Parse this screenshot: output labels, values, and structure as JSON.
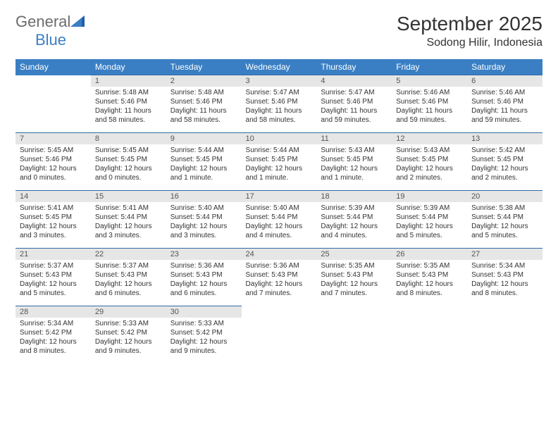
{
  "brand": {
    "main": "General",
    "sub": "Blue"
  },
  "title": "September 2025",
  "location": "Sodong Hilir, Indonesia",
  "colors": {
    "header_bg": "#3a7fc4",
    "header_text": "#ffffff",
    "row_border": "#2f6aa8",
    "daynum_bg": "#e6e6e6",
    "text": "#333333",
    "logo_gray": "#6b6b6b",
    "logo_blue": "#3a7fc4"
  },
  "weekdays": [
    "Sunday",
    "Monday",
    "Tuesday",
    "Wednesday",
    "Thursday",
    "Friday",
    "Saturday"
  ],
  "weeks": [
    [
      null,
      {
        "n": "1",
        "sr": "Sunrise: 5:48 AM",
        "ss": "Sunset: 5:46 PM",
        "dl": "Daylight: 11 hours and 58 minutes."
      },
      {
        "n": "2",
        "sr": "Sunrise: 5:48 AM",
        "ss": "Sunset: 5:46 PM",
        "dl": "Daylight: 11 hours and 58 minutes."
      },
      {
        "n": "3",
        "sr": "Sunrise: 5:47 AM",
        "ss": "Sunset: 5:46 PM",
        "dl": "Daylight: 11 hours and 58 minutes."
      },
      {
        "n": "4",
        "sr": "Sunrise: 5:47 AM",
        "ss": "Sunset: 5:46 PM",
        "dl": "Daylight: 11 hours and 59 minutes."
      },
      {
        "n": "5",
        "sr": "Sunrise: 5:46 AM",
        "ss": "Sunset: 5:46 PM",
        "dl": "Daylight: 11 hours and 59 minutes."
      },
      {
        "n": "6",
        "sr": "Sunrise: 5:46 AM",
        "ss": "Sunset: 5:46 PM",
        "dl": "Daylight: 11 hours and 59 minutes."
      }
    ],
    [
      {
        "n": "7",
        "sr": "Sunrise: 5:45 AM",
        "ss": "Sunset: 5:46 PM",
        "dl": "Daylight: 12 hours and 0 minutes."
      },
      {
        "n": "8",
        "sr": "Sunrise: 5:45 AM",
        "ss": "Sunset: 5:45 PM",
        "dl": "Daylight: 12 hours and 0 minutes."
      },
      {
        "n": "9",
        "sr": "Sunrise: 5:44 AM",
        "ss": "Sunset: 5:45 PM",
        "dl": "Daylight: 12 hours and 1 minute."
      },
      {
        "n": "10",
        "sr": "Sunrise: 5:44 AM",
        "ss": "Sunset: 5:45 PM",
        "dl": "Daylight: 12 hours and 1 minute."
      },
      {
        "n": "11",
        "sr": "Sunrise: 5:43 AM",
        "ss": "Sunset: 5:45 PM",
        "dl": "Daylight: 12 hours and 1 minute."
      },
      {
        "n": "12",
        "sr": "Sunrise: 5:43 AM",
        "ss": "Sunset: 5:45 PM",
        "dl": "Daylight: 12 hours and 2 minutes."
      },
      {
        "n": "13",
        "sr": "Sunrise: 5:42 AM",
        "ss": "Sunset: 5:45 PM",
        "dl": "Daylight: 12 hours and 2 minutes."
      }
    ],
    [
      {
        "n": "14",
        "sr": "Sunrise: 5:41 AM",
        "ss": "Sunset: 5:45 PM",
        "dl": "Daylight: 12 hours and 3 minutes."
      },
      {
        "n": "15",
        "sr": "Sunrise: 5:41 AM",
        "ss": "Sunset: 5:44 PM",
        "dl": "Daylight: 12 hours and 3 minutes."
      },
      {
        "n": "16",
        "sr": "Sunrise: 5:40 AM",
        "ss": "Sunset: 5:44 PM",
        "dl": "Daylight: 12 hours and 3 minutes."
      },
      {
        "n": "17",
        "sr": "Sunrise: 5:40 AM",
        "ss": "Sunset: 5:44 PM",
        "dl": "Daylight: 12 hours and 4 minutes."
      },
      {
        "n": "18",
        "sr": "Sunrise: 5:39 AM",
        "ss": "Sunset: 5:44 PM",
        "dl": "Daylight: 12 hours and 4 minutes."
      },
      {
        "n": "19",
        "sr": "Sunrise: 5:39 AM",
        "ss": "Sunset: 5:44 PM",
        "dl": "Daylight: 12 hours and 5 minutes."
      },
      {
        "n": "20",
        "sr": "Sunrise: 5:38 AM",
        "ss": "Sunset: 5:44 PM",
        "dl": "Daylight: 12 hours and 5 minutes."
      }
    ],
    [
      {
        "n": "21",
        "sr": "Sunrise: 5:37 AM",
        "ss": "Sunset: 5:43 PM",
        "dl": "Daylight: 12 hours and 5 minutes."
      },
      {
        "n": "22",
        "sr": "Sunrise: 5:37 AM",
        "ss": "Sunset: 5:43 PM",
        "dl": "Daylight: 12 hours and 6 minutes."
      },
      {
        "n": "23",
        "sr": "Sunrise: 5:36 AM",
        "ss": "Sunset: 5:43 PM",
        "dl": "Daylight: 12 hours and 6 minutes."
      },
      {
        "n": "24",
        "sr": "Sunrise: 5:36 AM",
        "ss": "Sunset: 5:43 PM",
        "dl": "Daylight: 12 hours and 7 minutes."
      },
      {
        "n": "25",
        "sr": "Sunrise: 5:35 AM",
        "ss": "Sunset: 5:43 PM",
        "dl": "Daylight: 12 hours and 7 minutes."
      },
      {
        "n": "26",
        "sr": "Sunrise: 5:35 AM",
        "ss": "Sunset: 5:43 PM",
        "dl": "Daylight: 12 hours and 8 minutes."
      },
      {
        "n": "27",
        "sr": "Sunrise: 5:34 AM",
        "ss": "Sunset: 5:43 PM",
        "dl": "Daylight: 12 hours and 8 minutes."
      }
    ],
    [
      {
        "n": "28",
        "sr": "Sunrise: 5:34 AM",
        "ss": "Sunset: 5:42 PM",
        "dl": "Daylight: 12 hours and 8 minutes."
      },
      {
        "n": "29",
        "sr": "Sunrise: 5:33 AM",
        "ss": "Sunset: 5:42 PM",
        "dl": "Daylight: 12 hours and 9 minutes."
      },
      {
        "n": "30",
        "sr": "Sunrise: 5:33 AM",
        "ss": "Sunset: 5:42 PM",
        "dl": "Daylight: 12 hours and 9 minutes."
      },
      null,
      null,
      null,
      null
    ]
  ]
}
